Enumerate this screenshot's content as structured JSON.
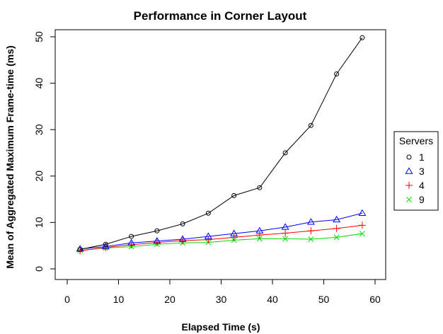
{
  "chart_data": {
    "type": "line",
    "title": "Performance in Corner Layout",
    "xlabel": "Elapsed Time (s)",
    "ylabel": "Mean of Aggregated Maximum Frame-time (ms)",
    "xlim": [
      0,
      60
    ],
    "ylim": [
      0,
      50
    ],
    "xticks": [
      "0",
      "10",
      "20",
      "30",
      "40",
      "50",
      "60"
    ],
    "yticks": [
      "0",
      "10",
      "20",
      "30",
      "40",
      "50"
    ],
    "grid": false,
    "legend": {
      "title": "Servers",
      "placement": "right"
    },
    "x": [
      2.5,
      7.5,
      12.5,
      17.5,
      22.5,
      27.5,
      32.5,
      37.5,
      42.5,
      47.5,
      52.5,
      57.5
    ],
    "series": [
      {
        "name": "1",
        "color": "#000000",
        "marker": "circle",
        "values": [
          4.2,
          5.3,
          7.0,
          8.2,
          9.7,
          12.0,
          15.8,
          17.5,
          25.0,
          30.9,
          42.0,
          49.8
        ]
      },
      {
        "name": "3",
        "color": "#0000ff",
        "marker": "triangle",
        "values": [
          4.3,
          4.8,
          5.6,
          6.0,
          6.4,
          7.0,
          7.6,
          8.2,
          9.0,
          10.1,
          10.6,
          12.0
        ]
      },
      {
        "name": "4",
        "color": "#ff0000",
        "marker": "plus",
        "values": [
          3.9,
          4.6,
          5.2,
          5.7,
          6.1,
          6.3,
          6.8,
          7.3,
          7.7,
          8.2,
          8.7,
          9.4
        ]
      },
      {
        "name": "9",
        "color": "#00dd00",
        "marker": "cross",
        "values": [
          4.0,
          4.5,
          4.8,
          5.3,
          5.6,
          5.7,
          6.2,
          6.5,
          6.5,
          6.4,
          6.8,
          7.6
        ]
      }
    ]
  }
}
